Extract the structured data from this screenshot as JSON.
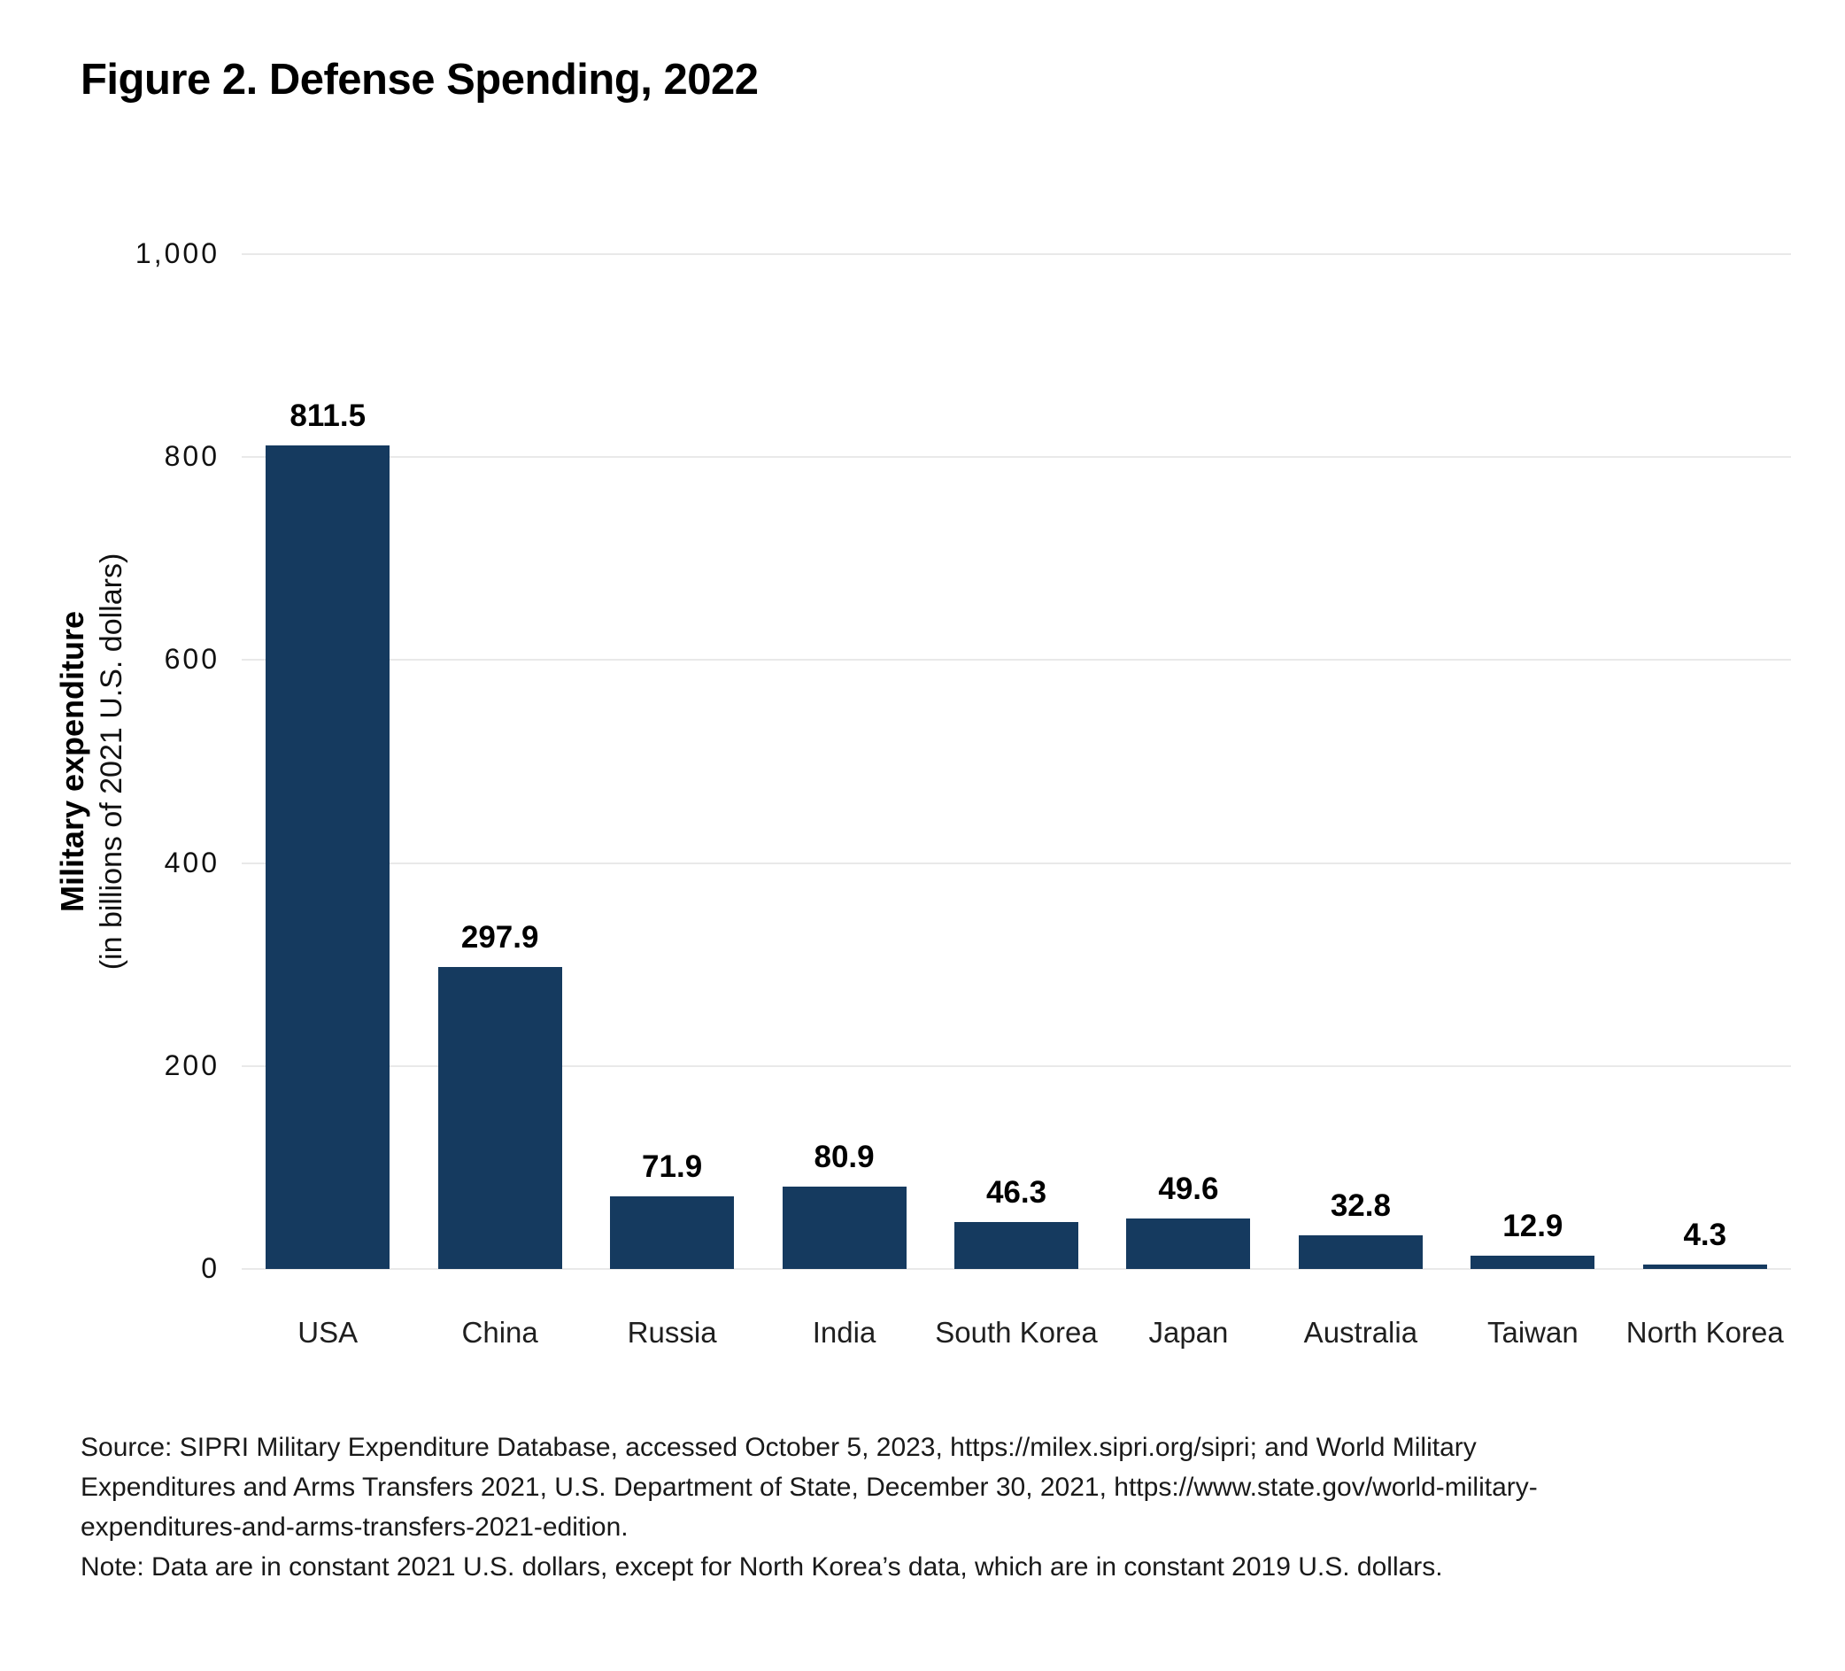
{
  "figure": {
    "title": "Figure 2. Defense Spending, 2022",
    "source_lines": [
      "Source: SIPRI Military Expenditure Database, accessed October 5, 2023, https://milex.sipri.org/sipri; and World Military",
      "Expenditures and Arms Transfers 2021, U.S. Department of State, December 30, 2021, https://www.state.gov/world-military-",
      "expenditures-and-arms-transfers-2021-edition."
    ],
    "note": "Note: Data are in constant 2021 U.S. dollars, except for North Korea’s data, which are in constant 2019 U.S. dollars."
  },
  "chart_data": {
    "type": "bar",
    "title": "Figure 2. Defense Spending, 2022",
    "categories": [
      "USA",
      "China",
      "Russia",
      "India",
      "South Korea",
      "Japan",
      "Australia",
      "Taiwan",
      "North Korea"
    ],
    "values": [
      811.5,
      297.9,
      71.9,
      80.9,
      46.3,
      49.6,
      32.8,
      12.9,
      4.3
    ],
    "value_labels": [
      "811.5",
      "297.9",
      "71.9",
      "80.9",
      "46.3",
      "49.6",
      "32.8",
      "12.9",
      "4.3"
    ],
    "xlabel": "",
    "ylabel": "Military expenditure",
    "ylabel_sub": "(in billions of 2021 U.S. dollars)",
    "ylim": [
      0,
      1000
    ],
    "ytick_interval": 200,
    "ytick_labels": [
      "0",
      "200",
      "400",
      "600",
      "800",
      "1,000"
    ],
    "grid": true,
    "legend_position": "none",
    "bar_color": "#153a5f",
    "gridline_color": "#e9e9e9"
  }
}
